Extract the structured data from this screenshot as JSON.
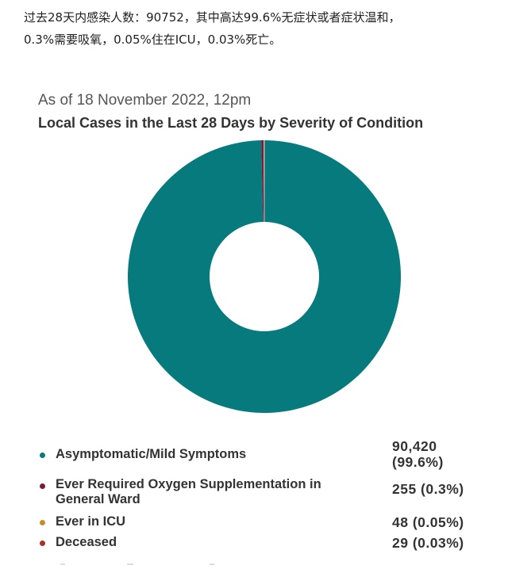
{
  "intro": {
    "line1": "过去28天内感染人数：90752，其中高达99.6%无症状或者症状温和，",
    "line2": "0.3%需要吸氧，0.05%住在ICU，0.03%死亡。"
  },
  "chart": {
    "as_of": "As of 18 November 2022, 12pm",
    "title": "Local Cases in the Last 28 Days by Severity of Condition"
  },
  "chart_data": {
    "type": "pie",
    "donut": true,
    "title": "Local Cases in the Last 28 Days by Severity of Condition",
    "subtitle": "As of 18 November 2022, 12pm",
    "categories": [
      "Asymptomatic/Mild Symptoms",
      "Ever Required Oxygen Supplementation in General Ward",
      "Ever in ICU",
      "Deceased"
    ],
    "values": [
      90420,
      255,
      48,
      29
    ],
    "labels": [
      "99.6%",
      "0.3%",
      "0.05%",
      "0.03%"
    ],
    "colors": [
      "#077a7d",
      "#7a1a3f",
      "#c98a2b",
      "#a83224"
    ],
    "legend_position": "bottom"
  },
  "legend": [
    {
      "label_lines": [
        "Asymptomatic/Mild Symptoms"
      ],
      "value_lines": [
        "90,420",
        "(99.6%)"
      ]
    },
    {
      "label_lines": [
        "Ever Required Oxygen Supplementation in",
        "General Ward"
      ],
      "value_lines": [
        "255 (0.3%)"
      ]
    },
    {
      "label_lines": [
        "Ever in ICU"
      ],
      "value_lines": [
        "48 (0.05%)"
      ]
    },
    {
      "label_lines": [
        "Deceased"
      ],
      "value_lines": [
        "29 (0.03%)"
      ]
    }
  ]
}
